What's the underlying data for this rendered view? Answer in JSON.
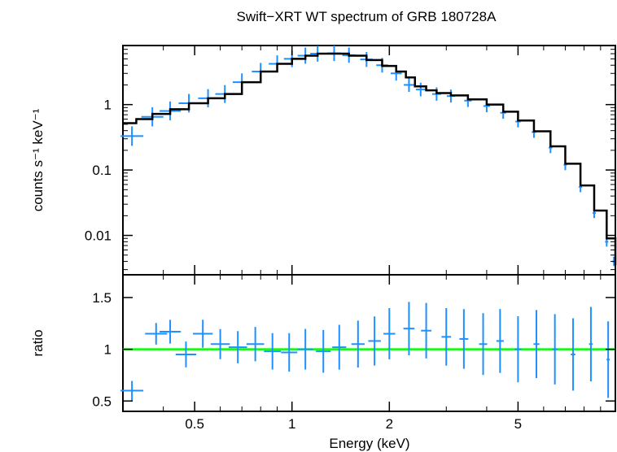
{
  "chart_data": [
    {
      "type": "scatter",
      "title": "Swift−XRT WT spectrum of GRB 180728A",
      "ylabel": "counts s⁻¹ keV⁻¹",
      "xlabel": "",
      "xscale": "log",
      "yscale": "log",
      "xlim": [
        0.3,
        10
      ],
      "ylim": [
        0.0025,
        8
      ],
      "yticks": [
        0.01,
        0.1,
        1
      ],
      "ytick_labels": [
        "0.01",
        "0.1",
        "1"
      ],
      "series": [
        {
          "color": "#1e90ff",
          "style": "crosses",
          "x": [
            0.32,
            0.37,
            0.42,
            0.48,
            0.55,
            0.62,
            0.7,
            0.8,
            0.9,
            1.0,
            1.1,
            1.2,
            1.35,
            1.5,
            1.7,
            1.9,
            2.1,
            2.3,
            2.5,
            2.8,
            3.1,
            3.5,
            4.0,
            4.5,
            5.0,
            5.6,
            6.3,
            7.0,
            7.8,
            8.6,
            9.4,
            9.9
          ],
          "y": [
            0.33,
            0.65,
            0.8,
            1.05,
            1.25,
            1.45,
            2.2,
            3.2,
            4.2,
            5.0,
            5.6,
            6.0,
            6.1,
            5.7,
            4.9,
            4.0,
            3.0,
            2.0,
            1.7,
            1.45,
            1.35,
            1.15,
            0.95,
            0.75,
            0.55,
            0.38,
            0.22,
            0.12,
            0.055,
            0.022,
            0.008,
            0.004
          ]
        },
        {
          "color": "#000000",
          "style": "step-line",
          "x": [
            0.3,
            0.33,
            0.37,
            0.42,
            0.48,
            0.55,
            0.62,
            0.7,
            0.8,
            0.9,
            1.0,
            1.1,
            1.2,
            1.35,
            1.5,
            1.7,
            1.9,
            2.1,
            2.25,
            2.4,
            2.6,
            2.8,
            3.1,
            3.5,
            4.0,
            4.5,
            5.0,
            5.6,
            6.3,
            7.0,
            7.8,
            8.6,
            9.4,
            10.0
          ],
          "y": [
            0.52,
            0.6,
            0.72,
            0.85,
            1.05,
            1.25,
            1.45,
            2.2,
            3.2,
            4.2,
            5.0,
            5.6,
            6.0,
            6.0,
            5.6,
            4.8,
            3.9,
            3.2,
            2.6,
            1.9,
            1.65,
            1.5,
            1.38,
            1.2,
            1.0,
            0.78,
            0.57,
            0.39,
            0.23,
            0.125,
            0.058,
            0.024,
            0.009,
            0.0035
          ]
        }
      ]
    },
    {
      "type": "scatter",
      "title": "",
      "ylabel": "ratio",
      "xlabel": "Energy (keV)",
      "xscale": "log",
      "xlim": [
        0.3,
        10
      ],
      "ylim": [
        0.4,
        1.72
      ],
      "xticks": [
        0.5,
        1,
        2,
        5
      ],
      "xtick_labels": [
        "0.5",
        "1",
        "2",
        "5"
      ],
      "yticks": [
        0.5,
        1,
        1.5
      ],
      "ytick_labels": [
        "0.5",
        "1",
        "1.5"
      ],
      "reference_line": {
        "y": 1,
        "color": "#00ff00"
      },
      "series": [
        {
          "color": "#1e90ff",
          "style": "crosses",
          "x": [
            0.32,
            0.38,
            0.42,
            0.47,
            0.53,
            0.6,
            0.68,
            0.77,
            0.87,
            0.98,
            1.1,
            1.25,
            1.4,
            1.6,
            1.8,
            2.0,
            2.3,
            2.6,
            3.0,
            3.4,
            3.9,
            4.4,
            5.0,
            5.7,
            6.5,
            7.4,
            8.4,
            9.5
          ],
          "y": [
            0.6,
            1.15,
            1.17,
            0.95,
            1.15,
            1.05,
            1.02,
            1.05,
            0.98,
            0.97,
            1.0,
            0.98,
            1.02,
            1.05,
            1.08,
            1.15,
            1.2,
            1.18,
            1.12,
            1.1,
            1.05,
            1.08,
            1.0,
            1.05,
            1.0,
            0.95,
            1.05,
            0.9
          ]
        }
      ]
    }
  ]
}
